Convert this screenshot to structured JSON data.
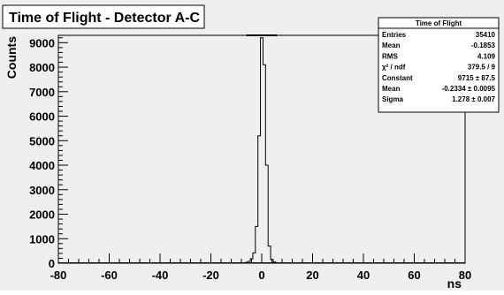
{
  "chart_data": {
    "type": "line",
    "title": "Time of Flight - Detector A-C",
    "xlabel": "ns",
    "ylabel": "Counts",
    "xlim": [
      -80,
      80
    ],
    "ylim": [
      0,
      9300
    ],
    "xticks": [
      -80,
      -60,
      -40,
      -20,
      0,
      20,
      40,
      60,
      80
    ],
    "yticks": [
      0,
      1000,
      2000,
      3000,
      4000,
      5000,
      6000,
      7000,
      8000,
      9000
    ],
    "grid": false,
    "series": [
      {
        "type": "histogram",
        "x": [
          -8,
          -7,
          -6,
          -5,
          -4,
          -3,
          -2,
          -1,
          0,
          1,
          2,
          3,
          4,
          5,
          6,
          7,
          8
        ],
        "values": [
          10,
          15,
          30,
          70,
          180,
          420,
          1500,
          5200,
          9200,
          8100,
          4000,
          700,
          150,
          50,
          20,
          10,
          5
        ]
      },
      {
        "type": "fit",
        "function": "gaussian",
        "constant": 9715,
        "mean": -0.2334,
        "sigma": 1.278
      }
    ],
    "stats_box": {
      "title": "Time of Flight",
      "position": "top-right",
      "rows": [
        {
          "label": "Entries",
          "value": "35410"
        },
        {
          "label": "Mean",
          "value": "-0.1853"
        },
        {
          "label": "RMS",
          "value": "4.109"
        },
        {
          "label": "χ² / ndf",
          "value": "379.5 / 9"
        },
        {
          "label": "Constant",
          "value": "9715 ± 87.5"
        },
        {
          "label": "Mean",
          "value": "-0.2334 ± 0.0095"
        },
        {
          "label": "Sigma",
          "value": "1.278 ± 0.007"
        }
      ]
    }
  }
}
